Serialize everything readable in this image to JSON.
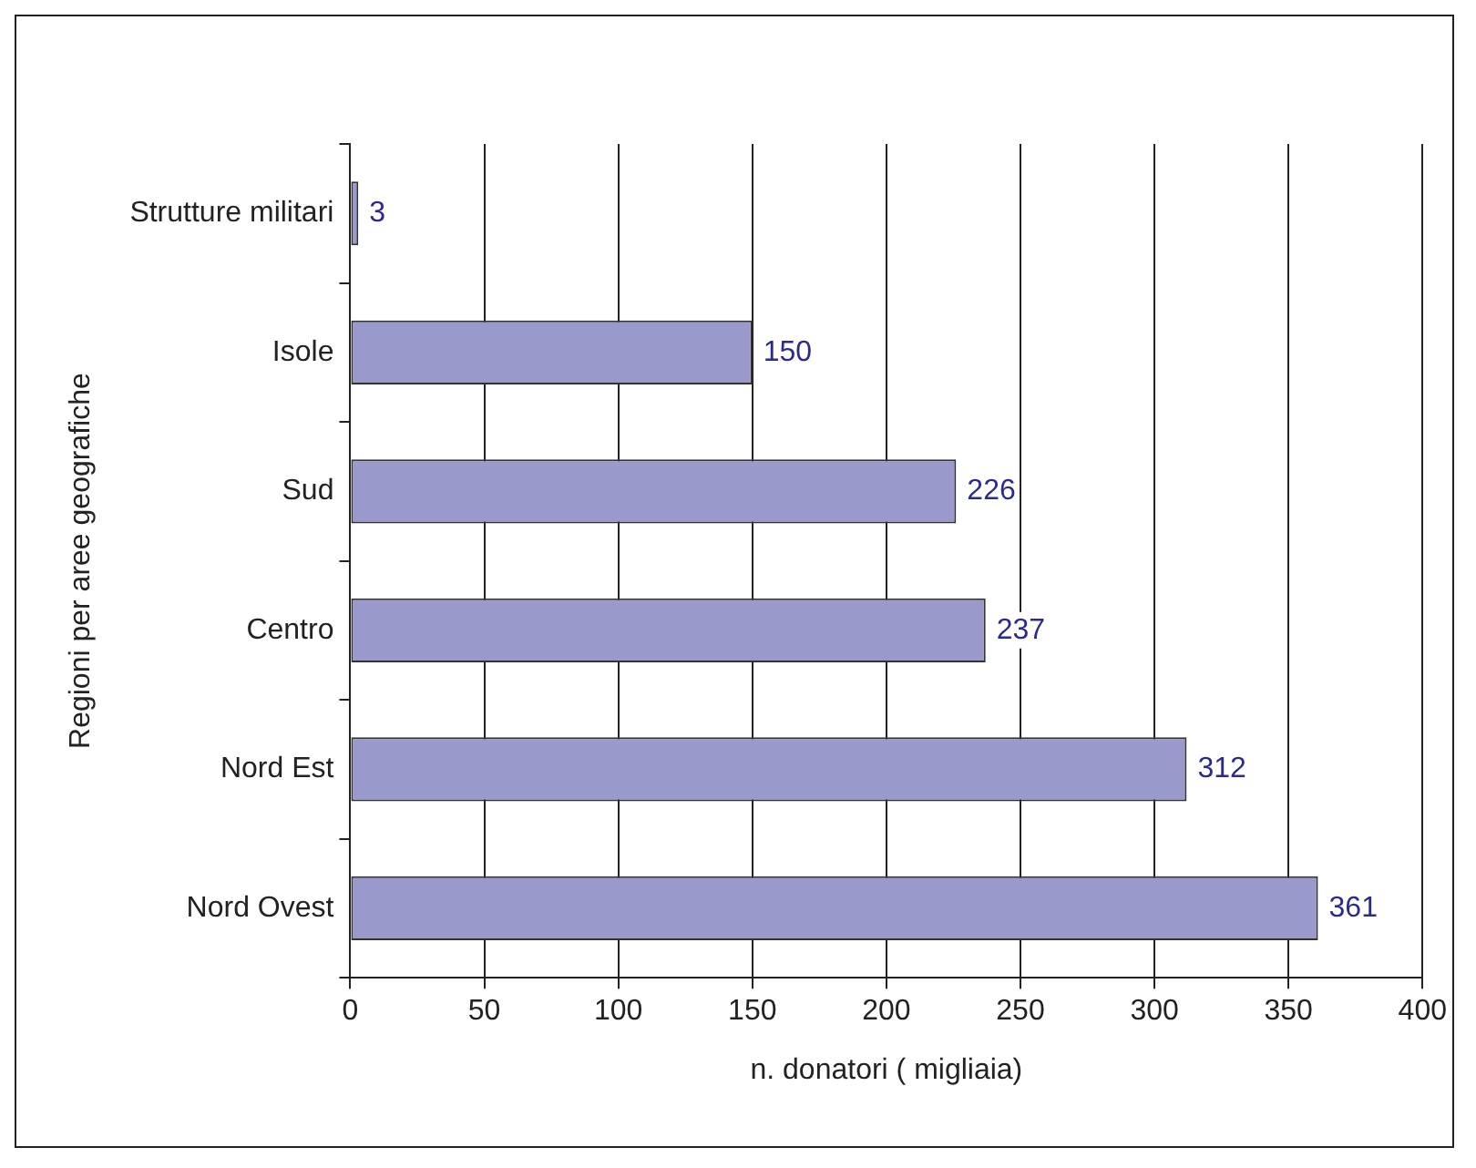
{
  "chart_data": {
    "type": "bar",
    "orientation": "horizontal",
    "xlabel": "n. donatori ( migliaia)",
    "ylabel": "Regioni per aree geografiche",
    "categories": [
      "Strutture militari",
      "Isole",
      "Sud",
      "Centro",
      "Nord Est",
      "Nord Ovest"
    ],
    "values": [
      3,
      150,
      226,
      237,
      312,
      361
    ],
    "color": "#9999cc",
    "xlim": [
      0,
      400
    ],
    "xticks": [
      0,
      50,
      100,
      150,
      200,
      250,
      300,
      350,
      400
    ],
    "grid": "x",
    "data_labels": true,
    "legend": false
  }
}
